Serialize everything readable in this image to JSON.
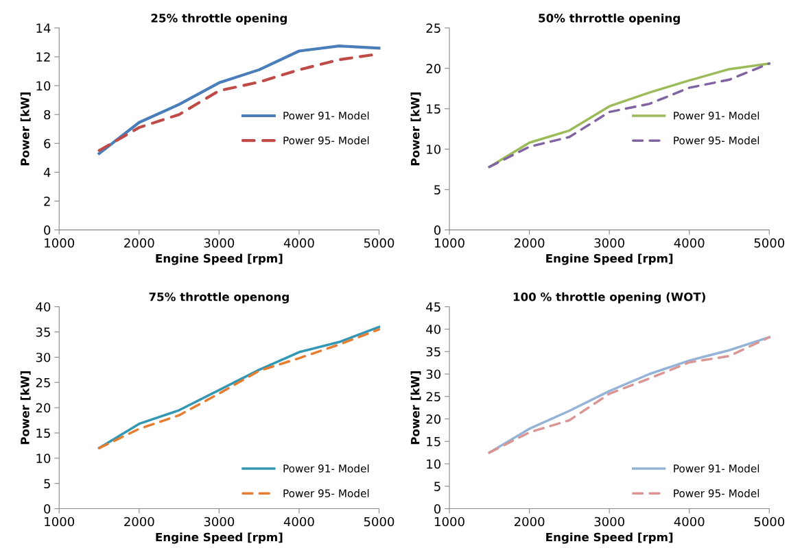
{
  "chart_data": [
    {
      "type": "line",
      "title": "25% throttle opening",
      "xlabel": "Engine Speed [rpm]",
      "ylabel": "Power [kW]",
      "x": [
        1500,
        2000,
        2500,
        3000,
        3500,
        4000,
        4500,
        5000
      ],
      "xlim": [
        1000,
        5000
      ],
      "xticks": [
        1000,
        2000,
        3000,
        4000,
        5000
      ],
      "ylim": [
        0,
        14
      ],
      "yticks": [
        0,
        2,
        4,
        6,
        8,
        10,
        12,
        14
      ],
      "grid": false,
      "legend": "center right",
      "series": [
        {
          "name": "Power 91- Model",
          "color": "#4a7ebb",
          "line_style": "solid",
          "values": [
            5.3,
            7.45,
            8.7,
            10.2,
            11.1,
            12.4,
            12.75,
            12.6
          ]
        },
        {
          "name": "Power 95- Model",
          "color": "#be4b48",
          "line_style": "dashed",
          "values": [
            5.5,
            7.1,
            8.0,
            9.65,
            10.25,
            11.1,
            11.8,
            12.2
          ]
        }
      ]
    },
    {
      "type": "line",
      "title": "50% thrrottle opening",
      "xlabel": "Engine Speed [rpm]",
      "ylabel": "Power [kW]",
      "x": [
        1500,
        2000,
        2500,
        3000,
        3500,
        4000,
        4500,
        5000
      ],
      "xlim": [
        1000,
        5000
      ],
      "xticks": [
        1000,
        2000,
        3000,
        4000,
        5000
      ],
      "ylim": [
        0,
        25
      ],
      "yticks": [
        0,
        5,
        10,
        15,
        20,
        25
      ],
      "grid": false,
      "legend": "center right",
      "series": [
        {
          "name": "Power 91- Model",
          "color": "#9bbb59",
          "line_style": "solid",
          "values": [
            7.8,
            10.8,
            12.3,
            15.3,
            17.0,
            18.5,
            19.9,
            20.6
          ]
        },
        {
          "name": "Power 95- Model",
          "color": "#8064a2",
          "line_style": "dashed",
          "values": [
            7.8,
            10.3,
            11.5,
            14.6,
            15.6,
            17.6,
            18.6,
            20.6
          ]
        }
      ]
    },
    {
      "type": "line",
      "title": "75% throttle openong",
      "xlabel": "Engine Speed [rpm]",
      "ylabel": "Power [kW]",
      "x": [
        1500,
        2000,
        2500,
        3000,
        3500,
        4000,
        4500,
        5000
      ],
      "xlim": [
        1000,
        5000
      ],
      "xticks": [
        1000,
        2000,
        3000,
        4000,
        5000
      ],
      "ylim": [
        0,
        40
      ],
      "yticks": [
        0,
        5,
        10,
        15,
        20,
        25,
        30,
        35,
        40
      ],
      "grid": false,
      "legend": "lower right",
      "series": [
        {
          "name": "Power 91- Model",
          "color": "#3197b3",
          "line_style": "solid",
          "values": [
            12.0,
            16.8,
            19.5,
            23.5,
            27.5,
            31.0,
            33.0,
            36.0
          ]
        },
        {
          "name": "Power 95- Model",
          "color": "#e57c2f",
          "line_style": "dashed",
          "values": [
            12.0,
            15.8,
            18.5,
            22.8,
            27.3,
            29.8,
            32.5,
            35.5
          ]
        }
      ]
    },
    {
      "type": "line",
      "title": "100 % throttle opening (WOT)",
      "xlabel": "Engine Speed [rpm]",
      "ylabel": "Power [kW]",
      "x": [
        1500,
        2000,
        2500,
        3000,
        3500,
        4000,
        4500,
        5000
      ],
      "xlim": [
        1000,
        5000
      ],
      "xticks": [
        1000,
        2000,
        3000,
        4000,
        5000
      ],
      "ylim": [
        0,
        45
      ],
      "yticks": [
        0,
        5,
        10,
        15,
        20,
        25,
        30,
        35,
        40,
        45
      ],
      "grid": false,
      "legend": "lower right",
      "series": [
        {
          "name": "Power 91- Model",
          "color": "#95b3d7",
          "line_style": "solid",
          "values": [
            12.5,
            17.8,
            21.8,
            26.2,
            30.0,
            33.0,
            35.3,
            38.2
          ]
        },
        {
          "name": "Power 95- Model",
          "color": "#d99694",
          "line_style": "dashed",
          "values": [
            12.5,
            17.0,
            19.7,
            25.6,
            29.0,
            32.6,
            34.0,
            38.2
          ]
        }
      ]
    }
  ]
}
